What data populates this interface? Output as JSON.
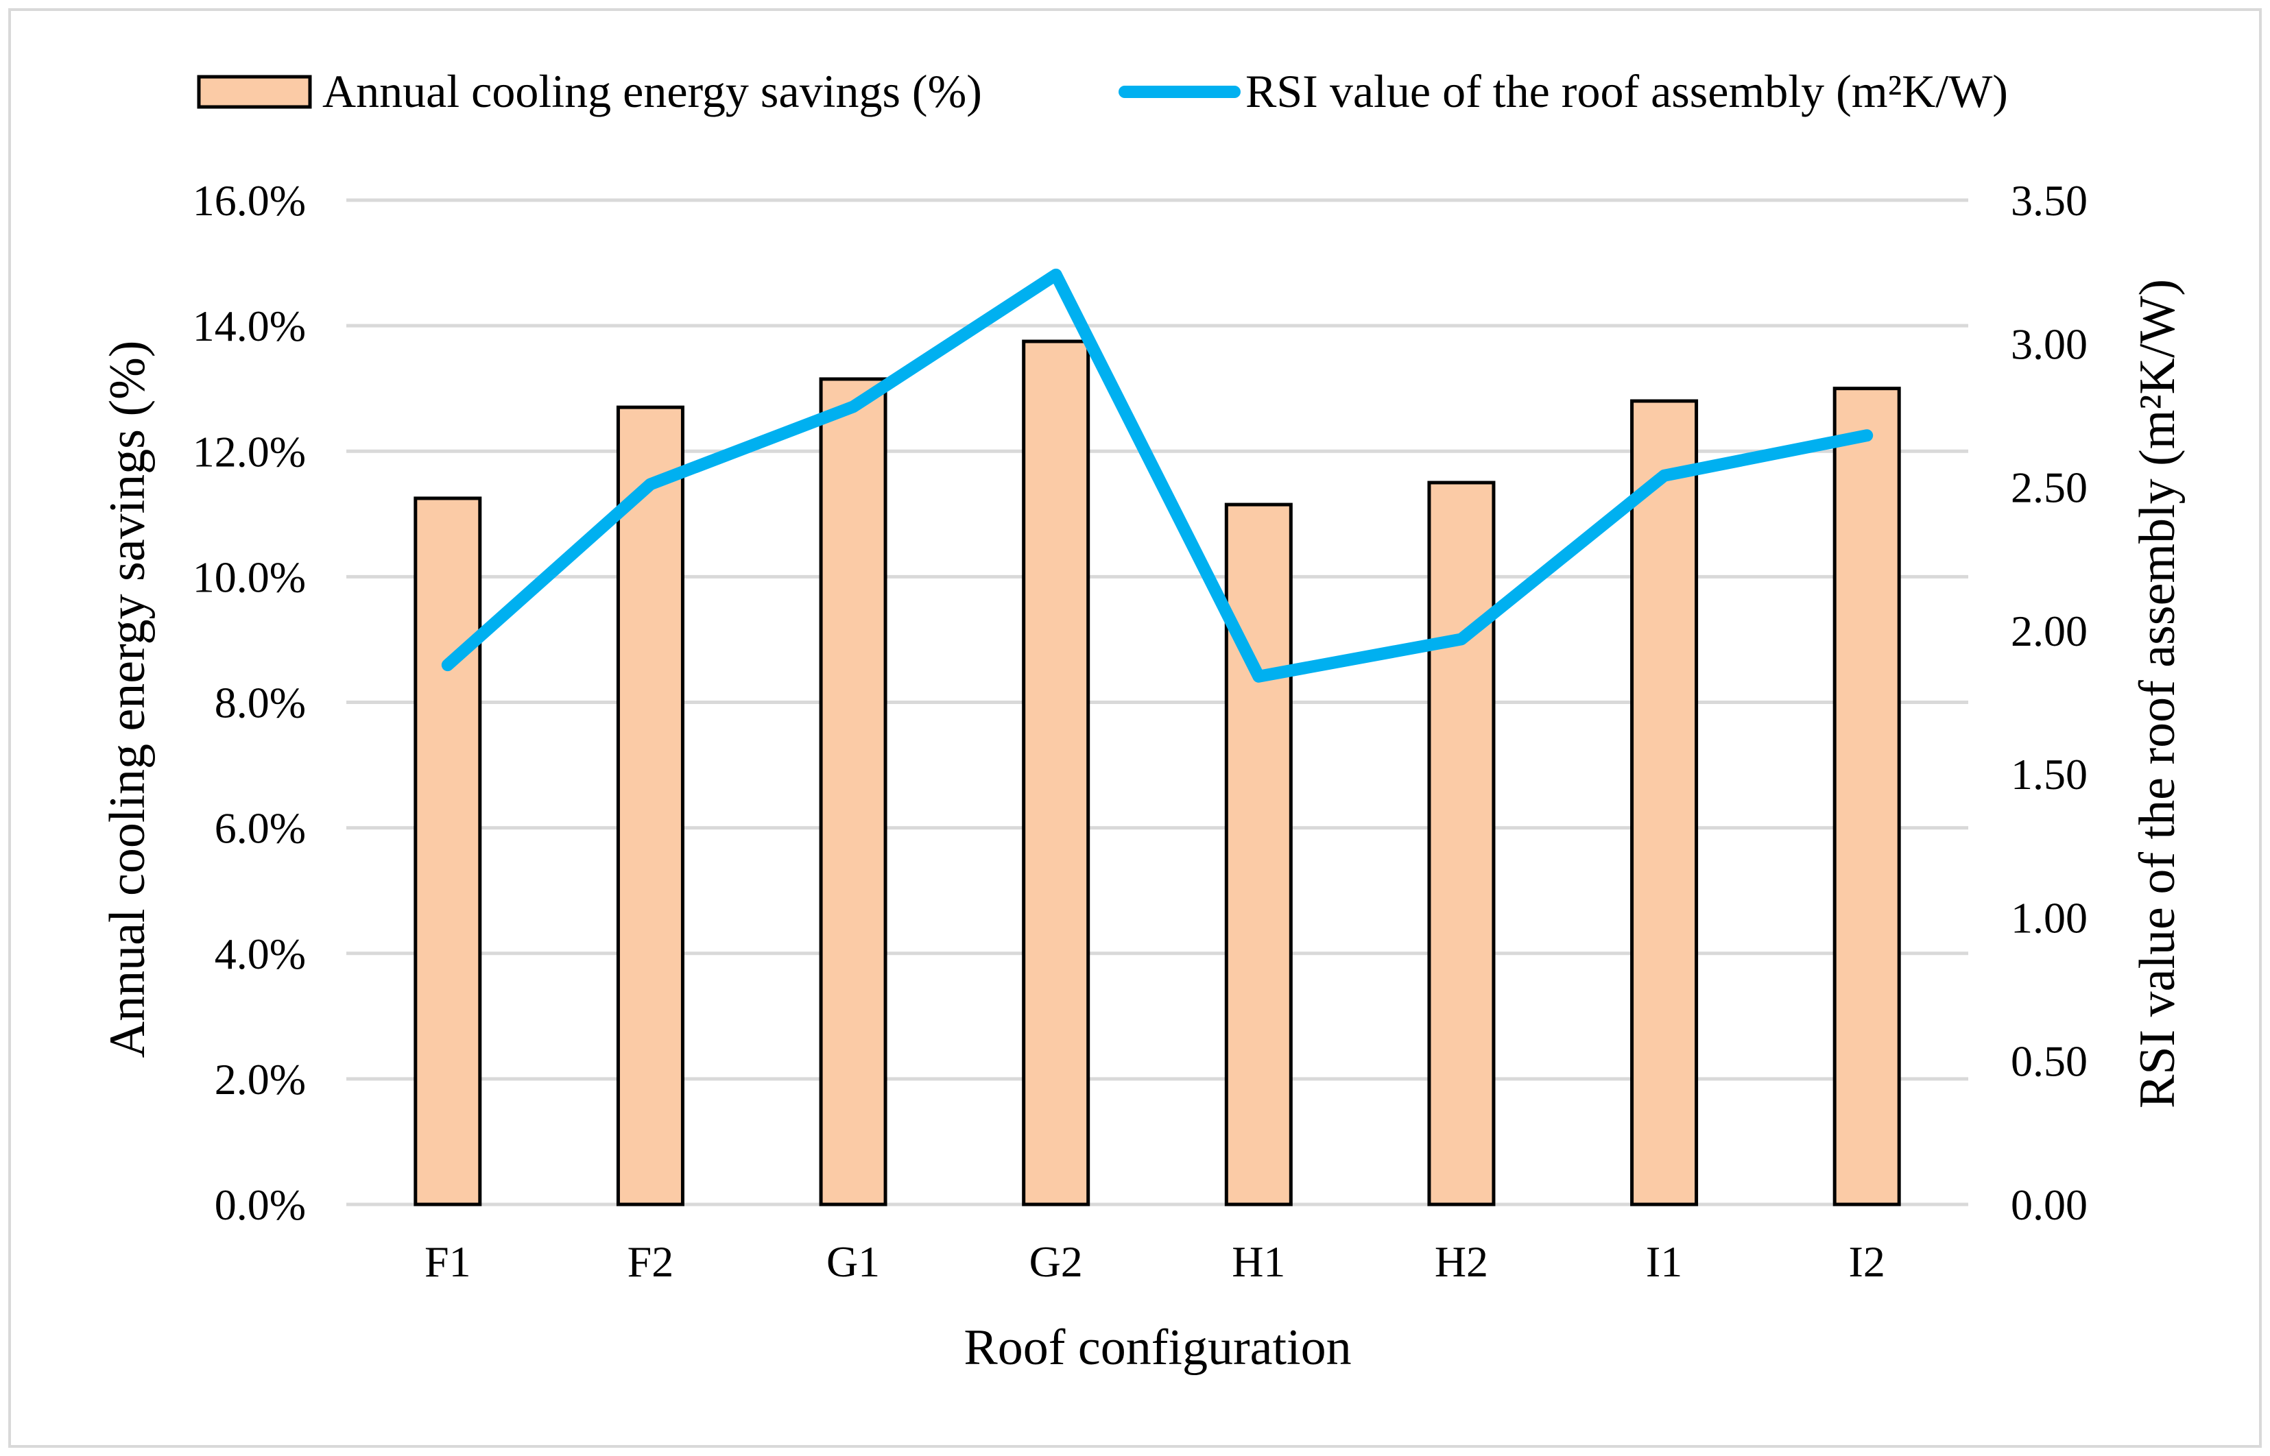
{
  "chart_data": {
    "type": "bar",
    "categories": [
      "F1",
      "F2",
      "G1",
      "G2",
      "H1",
      "H2",
      "I1",
      "I2"
    ],
    "series": [
      {
        "name": "Annual cooling energy savings (%)",
        "type": "bar",
        "axis": "left",
        "values": [
          11.25,
          12.7,
          13.15,
          13.75,
          11.15,
          11.5,
          12.8,
          13.0
        ],
        "color": "#fbcba6"
      },
      {
        "name": "RSI value of the roof assembly (m²K/W)",
        "type": "line",
        "axis": "right",
        "values": [
          1.88,
          2.51,
          2.78,
          3.24,
          1.84,
          1.97,
          2.54,
          2.68
        ],
        "color": "#00b0f0"
      }
    ],
    "xlabel": "Roof configuration",
    "ylabel": "Annual cooling energy savings (%)",
    "y2label": "RSI value of the roof assembly (m²K/W)",
    "ylim": [
      0,
      16
    ],
    "y2lim": [
      0,
      3.5
    ],
    "yticks": [
      "0.0%",
      "2.0%",
      "4.0%",
      "6.0%",
      "8.0%",
      "10.0%",
      "12.0%",
      "14.0%",
      "16.0%"
    ],
    "y2ticks": [
      "0.00",
      "0.50",
      "1.00",
      "1.50",
      "2.00",
      "2.50",
      "3.00",
      "3.50"
    ],
    "grid": true,
    "legend_position": "top"
  }
}
